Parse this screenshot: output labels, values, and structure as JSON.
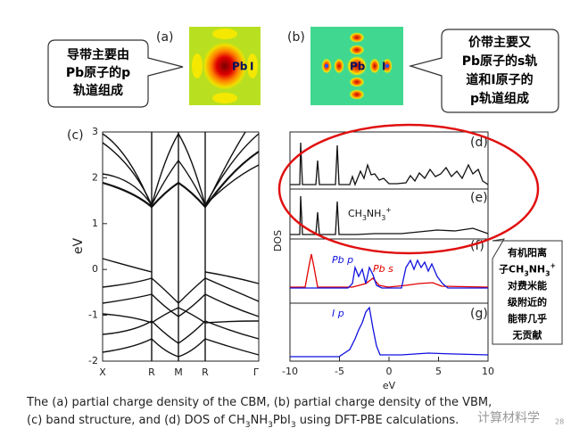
{
  "panel_labels": {
    "a": "(a)",
    "b": "(b)",
    "c": "(c)",
    "d": "(d)",
    "e": "(e)",
    "f": "(f)",
    "g": "(g)"
  },
  "images": {
    "a": {
      "atoms": [
        "Pb",
        "I"
      ]
    },
    "b": {
      "atoms": [
        "Pb",
        "I"
      ]
    }
  },
  "callouts": {
    "left": [
      "导带主要由",
      "Pb原子的p",
      "轨道组成"
    ],
    "right": [
      "价带主要又",
      "Pb原子的s轨",
      "道和I原子的",
      "p轨道组成"
    ],
    "note": [
      "有机阳离",
      "子CH3NH3+",
      "对费米能",
      "级附近的",
      "能带几乎",
      "无贡献"
    ]
  },
  "band_structure": {
    "y_label": "eV",
    "ylim": [
      -2,
      3
    ],
    "yticks": [
      -2,
      -1,
      0,
      1,
      2,
      3
    ],
    "k_points": [
      "X",
      "R",
      "M",
      "R",
      "Γ"
    ]
  },
  "dos": {
    "y_label": "DOS",
    "x_label": "eV",
    "xlim": [
      -10,
      10
    ],
    "xticks": [
      -10,
      -5,
      0,
      5,
      10
    ],
    "annotations": {
      "e": "CH3NH3+",
      "f_p": "Pb p",
      "f_s": "Pb s",
      "g": "I p"
    }
  },
  "caption": [
    "The (a) partial charge density of the CBM, (b) partial charge density of the VBM,",
    "(c) band structure, and (d) DOS of CH3NH3PbI3 using DFT-PBE calculations."
  ],
  "watermark": "计算材料学",
  "page_number": "28"
}
